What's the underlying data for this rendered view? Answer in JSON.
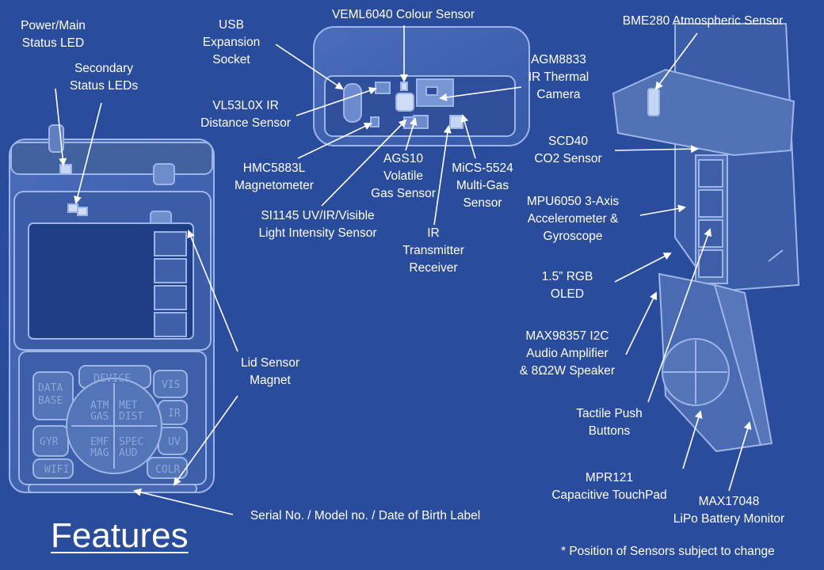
{
  "title": "Features",
  "footnote": "* Position of Sensors subject to change",
  "labels": [
    {
      "id": "power-led",
      "lines": [
        "Power/Main",
        "Status LED"
      ]
    },
    {
      "id": "secondary-leds",
      "lines": [
        "Secondary",
        "Status LEDs"
      ]
    },
    {
      "id": "usb",
      "lines": [
        "USB",
        "Expansion",
        "Socket"
      ]
    },
    {
      "id": "veml6040",
      "lines": [
        "VEML6040 Colour Sensor"
      ]
    },
    {
      "id": "agm8833",
      "lines": [
        "AGM8833",
        "IR Thermal",
        "Camera"
      ]
    },
    {
      "id": "bme280",
      "lines": [
        "BME280 Atmospheric Sensor"
      ]
    },
    {
      "id": "vl53l0x",
      "lines": [
        "VL53L0X IR",
        "Distance Sensor"
      ]
    },
    {
      "id": "hmc5883l",
      "lines": [
        "HMC5883L",
        "Magnetometer"
      ]
    },
    {
      "id": "ags10",
      "lines": [
        "AGS10",
        "Volatile",
        "Gas Sensor"
      ]
    },
    {
      "id": "mics5524",
      "lines": [
        "MiCS-5524",
        "Multi-Gas",
        "Sensor"
      ]
    },
    {
      "id": "scd40",
      "lines": [
        "SCD40",
        "CO2 Sensor"
      ]
    },
    {
      "id": "si1145",
      "lines": [
        "SI1145 UV/IR/Visible",
        "Light Intensity Sensor"
      ]
    },
    {
      "id": "ir-tx",
      "lines": [
        "IR",
        "Transmitter",
        "Receiver"
      ]
    },
    {
      "id": "mpu6050",
      "lines": [
        "MPU6050 3-Axis",
        "Accelerometer &",
        "Gyroscope"
      ]
    },
    {
      "id": "oled",
      "lines": [
        "1.5” RGB",
        "OLED"
      ]
    },
    {
      "id": "lid-magnet",
      "lines": [
        "Lid Sensor",
        "Magnet"
      ]
    },
    {
      "id": "max98357",
      "lines": [
        "MAX98357 I2C",
        "Audio Amplifier",
        "& 8Ω2W Speaker"
      ]
    },
    {
      "id": "buttons",
      "lines": [
        "Tactile Push",
        "Buttons"
      ]
    },
    {
      "id": "mpr121",
      "lines": [
        "MPR121",
        "Capacitive TouchPad"
      ]
    },
    {
      "id": "max17048",
      "lines": [
        "MAX17048",
        "LiPo Battery Monitor"
      ]
    },
    {
      "id": "serial",
      "lines": [
        "Serial No. / Model no. / Date of Birth Label"
      ]
    }
  ],
  "keypad": {
    "left": [
      "DATA BASE",
      "GYR",
      "WIFI"
    ],
    "top": "DEVICE",
    "right": [
      "VIS",
      "IR",
      "UV",
      "COLR"
    ],
    "centre": [
      "ATM GAS",
      "MET DIST",
      "EMF MAG",
      "SPEC AUD"
    ]
  }
}
